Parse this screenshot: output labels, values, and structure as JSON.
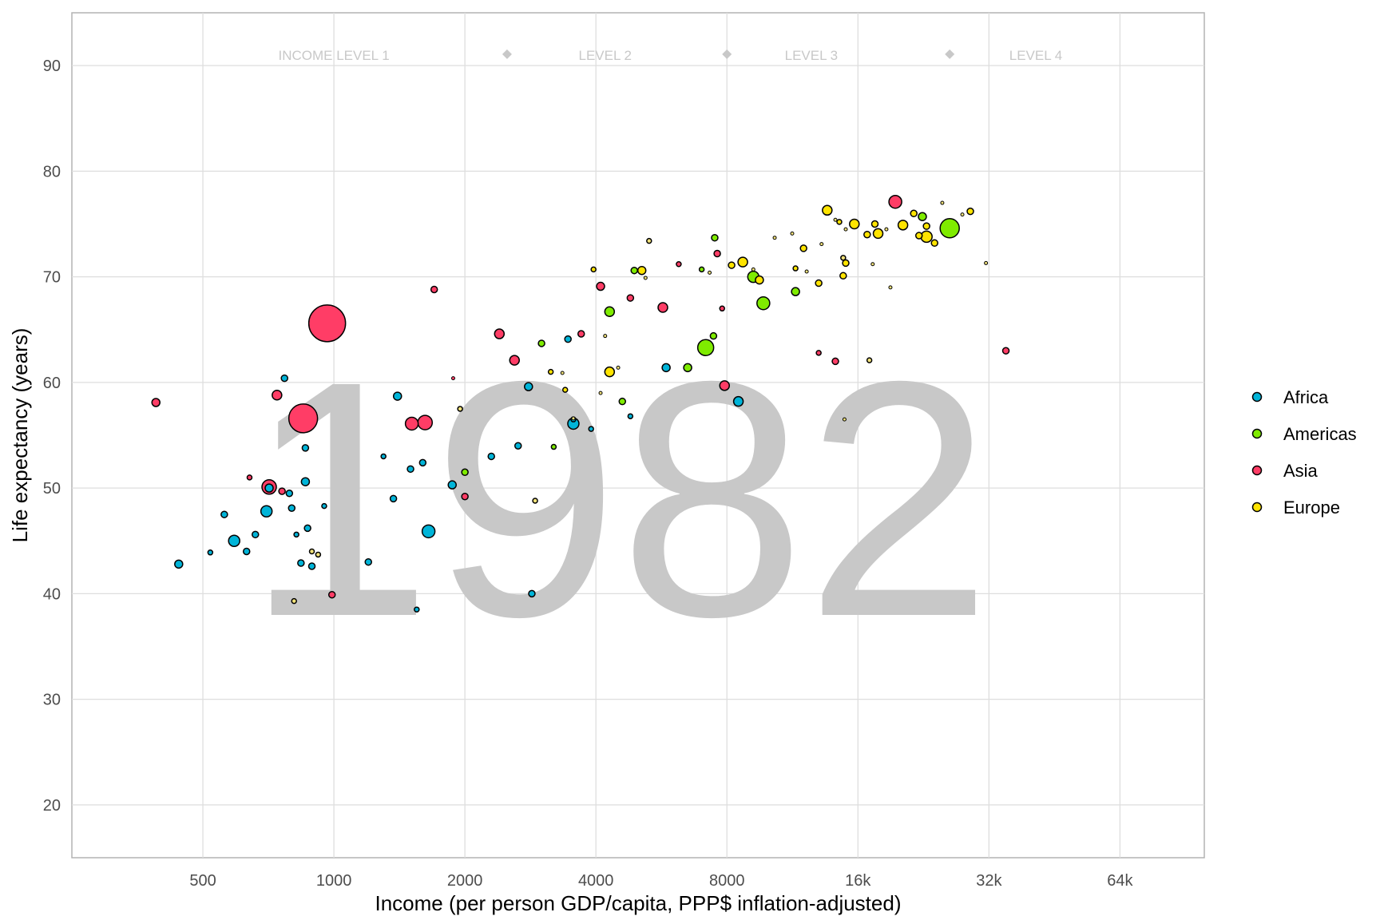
{
  "chart_data": {
    "type": "scatter",
    "year": "1982",
    "xlabel": "Income (per person GDP/capita, PPP$ inflation-adjusted)",
    "ylabel": "Life expectancy (years)",
    "x_scale": "log2",
    "xlim": [
      250,
      100000
    ],
    "ylim": [
      15,
      95
    ],
    "x_ticks": [
      {
        "value": 500,
        "label": "500"
      },
      {
        "value": 1000,
        "label": "1000"
      },
      {
        "value": 2000,
        "label": "2000"
      },
      {
        "value": 4000,
        "label": "4000"
      },
      {
        "value": 8000,
        "label": "8000"
      },
      {
        "value": 16000,
        "label": "16k"
      },
      {
        "value": 32000,
        "label": "32k"
      },
      {
        "value": 64000,
        "label": "64k"
      }
    ],
    "y_ticks": [
      {
        "value": 20,
        "label": "20"
      },
      {
        "value": 30,
        "label": "30"
      },
      {
        "value": 40,
        "label": "40"
      },
      {
        "value": 50,
        "label": "50"
      },
      {
        "value": 60,
        "label": "60"
      },
      {
        "value": 70,
        "label": "70"
      },
      {
        "value": 80,
        "label": "80"
      },
      {
        "value": 90,
        "label": "90"
      }
    ],
    "grid": true,
    "legend_position": "right",
    "income_levels": {
      "labels": [
        {
          "text": "INCOME LEVEL 1",
          "x": 1000
        },
        {
          "text": "LEVEL 2",
          "x": 4200
        },
        {
          "text": "LEVEL 3",
          "x": 12500
        },
        {
          "text": "LEVEL 4",
          "x": 41000
        }
      ],
      "markers_x": [
        2500,
        8000,
        26000
      ],
      "y": 91
    },
    "series": [
      {
        "name": "Africa",
        "color": "#00b4d8",
        "points": [
          [
            440,
            42.8,
            5
          ],
          [
            590,
            45,
            7
          ],
          [
            560,
            47.5,
            4
          ],
          [
            520,
            43.9,
            3
          ],
          [
            630,
            44,
            4
          ],
          [
            660,
            45.6,
            4
          ],
          [
            700,
            47.8,
            7
          ],
          [
            710,
            50,
            5
          ],
          [
            770,
            60.4,
            4
          ],
          [
            790,
            49.5,
            4
          ],
          [
            800,
            48.1,
            4
          ],
          [
            820,
            45.6,
            3
          ],
          [
            840,
            42.9,
            4
          ],
          [
            860,
            53.8,
            4
          ],
          [
            860,
            50.6,
            5
          ],
          [
            870,
            46.2,
            4
          ],
          [
            890,
            42.6,
            4
          ],
          [
            950,
            48.3,
            3
          ],
          [
            1200,
            43,
            4
          ],
          [
            1370,
            49,
            4
          ],
          [
            1400,
            58.7,
            5
          ],
          [
            1500,
            51.8,
            4
          ],
          [
            1600,
            52.4,
            4
          ],
          [
            1650,
            45.9,
            8
          ],
          [
            1870,
            50.3,
            5
          ],
          [
            2300,
            53,
            4
          ],
          [
            2650,
            54,
            4
          ],
          [
            2800,
            59.6,
            5
          ],
          [
            2850,
            40,
            4
          ],
          [
            3450,
            64.1,
            4
          ],
          [
            3550,
            56.1,
            7
          ],
          [
            3550,
            56.5,
            3
          ],
          [
            5800,
            61.4,
            5
          ],
          [
            8500,
            58.2,
            6
          ],
          [
            1550,
            38.5,
            3
          ],
          [
            1300,
            53,
            3
          ],
          [
            4800,
            56.8,
            3
          ],
          [
            3900,
            55.6,
            3
          ]
        ]
      },
      {
        "name": "Americas",
        "color": "#7feb00",
        "points": [
          [
            4300,
            66.7,
            6
          ],
          [
            6500,
            61.4,
            5
          ],
          [
            7150,
            63.3,
            10
          ],
          [
            7450,
            64.4,
            4
          ],
          [
            7500,
            73.7,
            4
          ],
          [
            9200,
            70,
            7
          ],
          [
            9700,
            67.5,
            8
          ],
          [
            11500,
            68.6,
            5
          ],
          [
            22500,
            75.7,
            5
          ],
          [
            26000,
            74.6,
            12
          ],
          [
            4600,
            58.2,
            4
          ],
          [
            7000,
            70.7,
            3
          ],
          [
            4900,
            70.6,
            4
          ],
          [
            2000,
            51.5,
            4
          ],
          [
            3000,
            63.7,
            4
          ],
          [
            3200,
            53.9,
            3
          ]
        ]
      },
      {
        "name": "Asia",
        "color": "#ff3d66",
        "points": [
          [
            390,
            58.1,
            5
          ],
          [
            710,
            50.1,
            9
          ],
          [
            740,
            58.8,
            6
          ],
          [
            760,
            49.7,
            4
          ],
          [
            850,
            56.6,
            18
          ],
          [
            965,
            65.6,
            23
          ],
          [
            990,
            39.9,
            4
          ],
          [
            1510,
            56.1,
            8
          ],
          [
            1620,
            56.2,
            9
          ],
          [
            1700,
            68.8,
            4
          ],
          [
            2000,
            49.2,
            4
          ],
          [
            2400,
            64.6,
            6
          ],
          [
            2600,
            62.1,
            6
          ],
          [
            3700,
            64.6,
            4
          ],
          [
            4100,
            69.1,
            5
          ],
          [
            4800,
            68,
            4
          ],
          [
            5700,
            67.1,
            6
          ],
          [
            7600,
            72.2,
            4
          ],
          [
            7900,
            59.7,
            6
          ],
          [
            14200,
            62,
            4
          ],
          [
            19500,
            77.1,
            8
          ],
          [
            35000,
            63,
            4
          ],
          [
            640,
            51,
            3
          ],
          [
            1880,
            60.4,
            2
          ],
          [
            6200,
            71.2,
            3
          ],
          [
            7800,
            67,
            3
          ],
          [
            13000,
            62.8,
            3
          ]
        ]
      },
      {
        "name": "Europe",
        "color": "#ffe400",
        "points": [
          [
            4300,
            61,
            6
          ],
          [
            8700,
            71.4,
            6
          ],
          [
            9500,
            69.7,
            5
          ],
          [
            13600,
            76.3,
            6
          ],
          [
            15700,
            75,
            6
          ],
          [
            17800,
            74.1,
            6
          ],
          [
            20300,
            74.9,
            6
          ],
          [
            22100,
            73.9,
            4
          ],
          [
            23000,
            73.8,
            7
          ],
          [
            24000,
            73.2,
            4
          ],
          [
            23000,
            74.8,
            4
          ],
          [
            17500,
            75,
            4
          ],
          [
            12000,
            72.7,
            4
          ],
          [
            13000,
            69.4,
            4
          ],
          [
            14800,
            70.1,
            4
          ],
          [
            15000,
            71.3,
            4
          ],
          [
            16800,
            74,
            4
          ],
          [
            29000,
            76.2,
            4
          ],
          [
            8200,
            71.1,
            4
          ],
          [
            3950,
            70.7,
            3
          ],
          [
            5100,
            70.6,
            5
          ],
          [
            3400,
            59.3,
            3
          ],
          [
            3150,
            61,
            3
          ],
          [
            21500,
            76,
            4
          ],
          [
            11500,
            70.8,
            3
          ],
          [
            14500,
            75.2,
            3
          ]
        ]
      }
    ],
    "unclassified_points": [
      [
        890,
        44,
        3
      ],
      [
        920,
        43.7,
        3
      ],
      [
        810,
        39.3,
        3
      ],
      [
        1950,
        57.5,
        3
      ],
      [
        2900,
        48.8,
        3
      ],
      [
        3550,
        56.6,
        2
      ],
      [
        4100,
        59,
        2
      ],
      [
        4500,
        61.4,
        2
      ],
      [
        5200,
        69.9,
        2
      ],
      [
        5300,
        73.4,
        3
      ],
      [
        7300,
        70.4,
        2
      ],
      [
        9200,
        70.7,
        2
      ],
      [
        10300,
        73.7,
        2
      ],
      [
        11300,
        74.1,
        2
      ],
      [
        12200,
        70.5,
        2
      ],
      [
        13200,
        73.1,
        2
      ],
      [
        14200,
        75.4,
        2
      ],
      [
        14800,
        71.8,
        3
      ],
      [
        15000,
        74.5,
        2
      ],
      [
        17300,
        71.2,
        2
      ],
      [
        18600,
        74.5,
        2
      ],
      [
        19000,
        69,
        2
      ],
      [
        17000,
        62.1,
        3
      ],
      [
        14900,
        56.5,
        2
      ],
      [
        25000,
        77,
        2
      ],
      [
        31500,
        71.3,
        2
      ],
      [
        27800,
        75.9,
        2
      ],
      [
        4200,
        64.4,
        2
      ],
      [
        3350,
        60.9,
        2
      ]
    ]
  }
}
